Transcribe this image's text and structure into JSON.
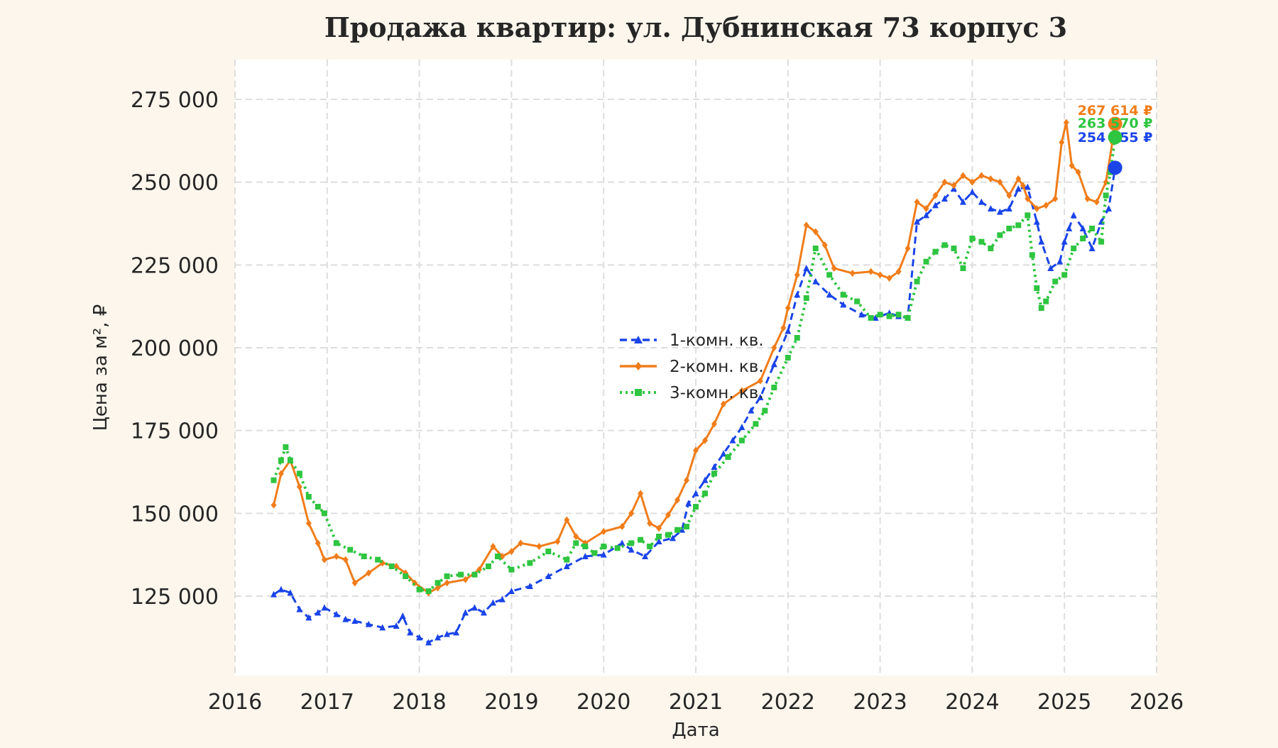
{
  "chart_data": {
    "type": "line",
    "title": "Продажа квартир: ул. Дубнинская 73 корпус 3",
    "xlabel": "Дата",
    "ylabel": "Цена за м², ₽",
    "xlim": [
      2016,
      2026
    ],
    "ylim": [
      101000,
      287000
    ],
    "x_ticks": [
      "2016",
      "2017",
      "2018",
      "2019",
      "2020",
      "2021",
      "2022",
      "2023",
      "2024",
      "2025",
      "2026"
    ],
    "y_ticks": [
      "125 000",
      "150 000",
      "175 000",
      "200 000",
      "225 000",
      "250 000",
      "275 000"
    ],
    "y_tick_values": [
      125000,
      150000,
      175000,
      200000,
      225000,
      250000,
      275000
    ],
    "grid": true,
    "legend_position": "center",
    "series": [
      {
        "name": "1-комн. кв.",
        "color": "#1a44e8",
        "line_style": "dashed",
        "marker": "triangle",
        "end_label": "254 355 ₽",
        "end_value": 254355,
        "x": [
          2016.42,
          2016.5,
          2016.6,
          2016.7,
          2016.8,
          2016.9,
          2016.97,
          2017.1,
          2017.2,
          2017.3,
          2017.45,
          2017.6,
          2017.75,
          2017.82,
          2017.9,
          2018.0,
          2018.1,
          2018.2,
          2018.3,
          2018.4,
          2018.5,
          2018.6,
          2018.7,
          2018.8,
          2018.9,
          2019.0,
          2019.2,
          2019.4,
          2019.6,
          2019.8,
          2020.0,
          2020.2,
          2020.3,
          2020.45,
          2020.6,
          2020.75,
          2020.85,
          2020.92,
          2021.0,
          2021.1,
          2021.2,
          2021.3,
          2021.4,
          2021.5,
          2021.6,
          2021.7,
          2021.85,
          2022.0,
          2022.1,
          2022.2,
          2022.3,
          2022.45,
          2022.6,
          2022.8,
          2022.95,
          2023.1,
          2023.2,
          2023.3,
          2023.4,
          2023.5,
          2023.6,
          2023.7,
          2023.8,
          2023.9,
          2024.0,
          2024.1,
          2024.2,
          2024.3,
          2024.4,
          2024.5,
          2024.6,
          2024.7,
          2024.75,
          2024.85,
          2024.95,
          2025.0,
          2025.05,
          2025.1,
          2025.2,
          2025.3,
          2025.4,
          2025.48,
          2025.55
        ],
        "y": [
          125500,
          127000,
          126000,
          121000,
          118500,
          120000,
          121500,
          119500,
          118000,
          117500,
          116500,
          115500,
          116000,
          119000,
          114000,
          112500,
          111000,
          112500,
          113500,
          114000,
          120000,
          121500,
          120000,
          123000,
          124000,
          126500,
          128000,
          131000,
          134000,
          137000,
          137500,
          141000,
          139000,
          137000,
          141500,
          142500,
          145000,
          153000,
          156000,
          160000,
          164000,
          168000,
          172000,
          176000,
          181000,
          185000,
          195000,
          205000,
          216000,
          224000,
          220000,
          216000,
          213000,
          210000,
          209000,
          210500,
          209500,
          209000,
          238000,
          240000,
          243000,
          245000,
          248000,
          244000,
          247000,
          244000,
          242000,
          241000,
          242000,
          248000,
          248500,
          238000,
          232000,
          224000,
          226000,
          232000,
          236000,
          240000,
          236000,
          230000,
          238000,
          242000,
          254355
        ]
      },
      {
        "name": "2-комн. кв.",
        "color": "#f07d1a",
        "line_style": "solid",
        "marker": "diamond",
        "end_label": "267 614 ₽",
        "end_value": 267614,
        "x": [
          2016.42,
          2016.5,
          2016.6,
          2016.7,
          2016.8,
          2016.9,
          2016.97,
          2017.1,
          2017.2,
          2017.3,
          2017.45,
          2017.6,
          2017.75,
          2017.85,
          2017.95,
          2018.1,
          2018.2,
          2018.3,
          2018.5,
          2018.65,
          2018.8,
          2018.9,
          2019.0,
          2019.1,
          2019.3,
          2019.5,
          2019.6,
          2019.7,
          2019.8,
          2020.0,
          2020.2,
          2020.3,
          2020.4,
          2020.5,
          2020.6,
          2020.7,
          2020.8,
          2020.9,
          2021.0,
          2021.1,
          2021.2,
          2021.3,
          2021.5,
          2021.7,
          2021.85,
          2021.95,
          2022.0,
          2022.1,
          2022.2,
          2022.3,
          2022.4,
          2022.5,
          2022.7,
          2022.9,
          2023.0,
          2023.1,
          2023.2,
          2023.3,
          2023.4,
          2023.5,
          2023.6,
          2023.7,
          2023.8,
          2023.9,
          2024.0,
          2024.1,
          2024.2,
          2024.3,
          2024.4,
          2024.5,
          2024.55,
          2024.6,
          2024.7,
          2024.8,
          2024.9,
          2024.97,
          2025.02,
          2025.08,
          2025.15,
          2025.25,
          2025.35,
          2025.45,
          2025.52,
          2025.55
        ],
        "y": [
          152500,
          162000,
          166000,
          158000,
          147000,
          141000,
          136000,
          137000,
          136000,
          129000,
          132000,
          135000,
          134000,
          132000,
          129000,
          126000,
          127500,
          129000,
          130000,
          133000,
          140000,
          137000,
          138500,
          141000,
          140000,
          141500,
          148000,
          143000,
          141000,
          144500,
          146000,
          150000,
          156000,
          147000,
          145500,
          149500,
          154000,
          160000,
          169000,
          172000,
          177000,
          183000,
          187000,
          190000,
          200000,
          206000,
          212000,
          222000,
          237000,
          235000,
          231000,
          224000,
          222500,
          223000,
          222000,
          221000,
          223000,
          230000,
          244000,
          242000,
          246000,
          250000,
          249000,
          252000,
          250000,
          252000,
          251000,
          250000,
          246000,
          251000,
          249000,
          245000,
          242000,
          243000,
          245000,
          262000,
          268000,
          255000,
          253000,
          245000,
          244000,
          250000,
          262000,
          267614
        ]
      },
      {
        "name": "3-комн. кв.",
        "color": "#2ec540",
        "line_style": "dotted",
        "marker": "square",
        "end_label": "263 570 ₽",
        "end_value": 263570,
        "x": [
          2016.42,
          2016.5,
          2016.55,
          2016.6,
          2016.7,
          2016.8,
          2016.9,
          2016.97,
          2017.1,
          2017.25,
          2017.4,
          2017.55,
          2017.7,
          2017.85,
          2018.0,
          2018.1,
          2018.2,
          2018.3,
          2018.45,
          2018.6,
          2018.75,
          2018.85,
          2019.0,
          2019.2,
          2019.4,
          2019.6,
          2019.7,
          2019.8,
          2019.9,
          2020.0,
          2020.15,
          2020.3,
          2020.4,
          2020.5,
          2020.6,
          2020.7,
          2020.8,
          2020.9,
          2021.0,
          2021.1,
          2021.2,
          2021.35,
          2021.5,
          2021.65,
          2021.75,
          2021.85,
          2022.0,
          2022.1,
          2022.2,
          2022.3,
          2022.45,
          2022.6,
          2022.75,
          2022.9,
          2023.0,
          2023.1,
          2023.2,
          2023.3,
          2023.4,
          2023.5,
          2023.6,
          2023.7,
          2023.8,
          2023.9,
          2024.0,
          2024.1,
          2024.2,
          2024.3,
          2024.4,
          2024.5,
          2024.6,
          2024.65,
          2024.7,
          2024.75,
          2024.8,
          2024.9,
          2025.0,
          2025.1,
          2025.2,
          2025.3,
          2025.4,
          2025.45,
          2025.5,
          2025.55
        ],
        "y": [
          160000,
          166000,
          170000,
          166000,
          162000,
          155000,
          152000,
          150000,
          141000,
          139000,
          137000,
          136000,
          134000,
          131000,
          127000,
          126500,
          129000,
          131000,
          131500,
          131500,
          134000,
          137000,
          133000,
          135000,
          138500,
          136000,
          141000,
          140000,
          138000,
          140000,
          139500,
          141000,
          142000,
          140000,
          143000,
          143500,
          145000,
          146000,
          152000,
          156000,
          162000,
          167000,
          172000,
          177000,
          181000,
          188000,
          197000,
          203000,
          215000,
          230000,
          222000,
          216000,
          214000,
          209000,
          210000,
          209500,
          210000,
          209000,
          220000,
          226000,
          229000,
          231000,
          230000,
          224000,
          233000,
          232000,
          230000,
          234000,
          236000,
          237000,
          240000,
          228000,
          218000,
          212000,
          214000,
          220000,
          222000,
          230000,
          233000,
          236000,
          232000,
          246000,
          253000,
          263570
        ]
      }
    ]
  }
}
